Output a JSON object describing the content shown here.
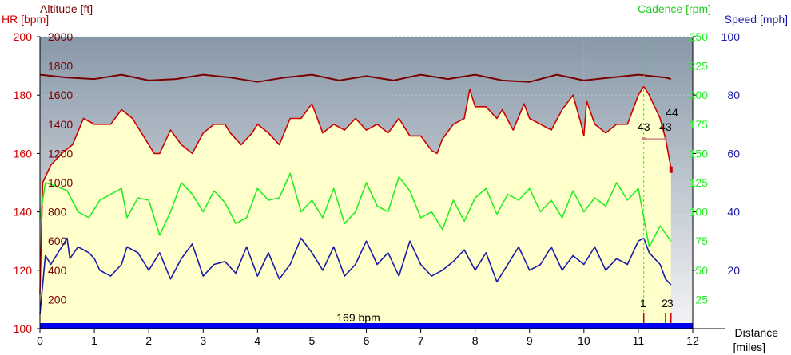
{
  "colors": {
    "hr": "#cc0000",
    "altitude": "#7a0000",
    "cadence": "#22ee22",
    "speed": "#1a1aaa",
    "area": "#ffffcc",
    "bg_top": "#8898a8",
    "bg_bottom": "#f4f4f6",
    "bottom_bar": "#0000ee",
    "axis_text": "#000000",
    "grid": "#b8c0c8"
  },
  "chart_data": {
    "type": "line",
    "titles": {
      "altitude": "Altitude [ft]",
      "hr": "HR [bpm]",
      "cadence": "Cadence [rpm]",
      "speed": "Speed [mph]",
      "distance": "Distance",
      "distance_unit": "[miles]"
    },
    "axes": {
      "x": {
        "range": [
          0,
          12
        ],
        "ticks": [
          "0",
          "1",
          "2",
          "3",
          "4",
          "5",
          "6",
          "7",
          "8",
          "9",
          "10",
          "11",
          "12"
        ]
      },
      "hr": {
        "range": [
          100,
          200
        ],
        "ticks": [
          "100",
          "120",
          "140",
          "160",
          "180",
          "200"
        ]
      },
      "altitude": {
        "range": [
          0,
          2000
        ],
        "ticks": [
          "200",
          "400",
          "600",
          "800",
          "1000",
          "1200",
          "1400",
          "1600",
          "1800",
          "2000"
        ]
      },
      "cadence": {
        "range": [
          0,
          250
        ],
        "ticks": [
          "25",
          "50",
          "75",
          "100",
          "125",
          "150",
          "175",
          "200",
          "225",
          "250"
        ]
      },
      "speed": {
        "range": [
          0,
          100
        ],
        "ticks": [
          "20",
          "40",
          "60",
          "80",
          "100"
        ]
      }
    },
    "marker_x": 11.1,
    "bottom_label": "169 bpm",
    "laps": [
      {
        "label": "1",
        "x": 11.1
      },
      {
        "label": "2",
        "x": 11.5
      },
      {
        "label": "3",
        "x": 11.6
      }
    ],
    "lap_segment": {
      "left_label": "43",
      "right_label": "43",
      "top_label": "44",
      "x_start": 11.1,
      "x_end": 11.5,
      "hr": 165
    },
    "series": [
      {
        "name": "Altitude",
        "axis": "altitude",
        "x": [
          0,
          0.5,
          1,
          1.5,
          2,
          2.5,
          3,
          3.5,
          4,
          4.5,
          5,
          5.5,
          6,
          6.5,
          7,
          7.5,
          8,
          8.5,
          9,
          9.5,
          10,
          10.5,
          11,
          11.5,
          11.6
        ],
        "values": [
          1740,
          1720,
          1710,
          1740,
          1700,
          1710,
          1740,
          1720,
          1690,
          1720,
          1740,
          1700,
          1730,
          1700,
          1740,
          1710,
          1740,
          1700,
          1690,
          1740,
          1700,
          1720,
          1740,
          1720,
          1710
        ]
      },
      {
        "name": "HR",
        "axis": "hr",
        "x": [
          0,
          0.05,
          0.2,
          0.4,
          0.6,
          0.8,
          1.0,
          1.3,
          1.5,
          1.7,
          1.9,
          2.0,
          2.1,
          2.2,
          2.4,
          2.6,
          2.8,
          3.0,
          3.2,
          3.4,
          3.5,
          3.7,
          3.9,
          4.0,
          4.2,
          4.4,
          4.6,
          4.8,
          5.0,
          5.1,
          5.2,
          5.4,
          5.6,
          5.8,
          6.0,
          6.2,
          6.4,
          6.6,
          6.8,
          7.0,
          7.2,
          7.3,
          7.4,
          7.6,
          7.8,
          7.9,
          8.0,
          8.2,
          8.4,
          8.5,
          8.7,
          8.9,
          9.0,
          9.2,
          9.4,
          9.6,
          9.8,
          9.95,
          10.0,
          10.05,
          10.2,
          10.4,
          10.6,
          10.8,
          11.0,
          11.1,
          11.2,
          11.3,
          11.4,
          11.5,
          11.6
        ],
        "values": [
          112,
          150,
          156,
          160,
          163,
          172,
          170,
          170,
          175,
          172,
          166,
          163,
          160,
          160,
          168,
          163,
          160,
          167,
          170,
          170,
          167,
          163,
          167,
          170,
          167,
          163,
          172,
          172,
          177,
          172,
          167,
          170,
          168,
          172,
          168,
          170,
          167,
          172,
          166,
          166,
          161,
          160,
          165,
          170,
          172,
          182,
          176,
          176,
          172,
          175,
          168,
          177,
          172,
          170,
          168,
          175,
          180,
          170,
          166,
          178,
          170,
          167,
          170,
          170,
          180,
          183,
          180,
          176,
          172,
          165,
          155
        ]
      },
      {
        "name": "Cadence",
        "axis": "cadence",
        "x": [
          0,
          0.1,
          0.3,
          0.5,
          0.7,
          0.9,
          1.1,
          1.3,
          1.5,
          1.6,
          1.8,
          2.0,
          2.2,
          2.4,
          2.6,
          2.8,
          3.0,
          3.2,
          3.4,
          3.6,
          3.8,
          4.0,
          4.2,
          4.4,
          4.6,
          4.8,
          5.0,
          5.2,
          5.4,
          5.6,
          5.8,
          6.0,
          6.2,
          6.4,
          6.6,
          6.8,
          7.0,
          7.2,
          7.4,
          7.6,
          7.8,
          8.0,
          8.2,
          8.4,
          8.6,
          8.8,
          9.0,
          9.2,
          9.4,
          9.6,
          9.8,
          10.0,
          10.2,
          10.4,
          10.6,
          10.8,
          11.0,
          11.2,
          11.4,
          11.6
        ],
        "values": [
          95,
          125,
          122,
          118,
          100,
          95,
          110,
          115,
          120,
          95,
          112,
          110,
          80,
          100,
          125,
          115,
          100,
          118,
          108,
          90,
          95,
          120,
          110,
          112,
          133,
          100,
          110,
          95,
          120,
          90,
          100,
          125,
          105,
          100,
          130,
          118,
          95,
          100,
          85,
          110,
          92,
          112,
          120,
          98,
          115,
          110,
          120,
          100,
          110,
          95,
          118,
          100,
          112,
          105,
          125,
          110,
          120,
          70,
          88,
          75
        ]
      },
      {
        "name": "Speed",
        "axis": "speed",
        "x": [
          0,
          0.1,
          0.2,
          0.4,
          0.5,
          0.55,
          0.7,
          0.9,
          1.0,
          1.1,
          1.3,
          1.5,
          1.6,
          1.8,
          2.0,
          2.2,
          2.4,
          2.6,
          2.8,
          3.0,
          3.2,
          3.4,
          3.6,
          3.8,
          4.0,
          4.2,
          4.4,
          4.6,
          4.8,
          5.0,
          5.2,
          5.4,
          5.6,
          5.8,
          6.0,
          6.2,
          6.4,
          6.6,
          6.8,
          7.0,
          7.2,
          7.4,
          7.6,
          7.8,
          8.0,
          8.2,
          8.4,
          8.6,
          8.8,
          9.0,
          9.2,
          9.4,
          9.6,
          9.8,
          10.0,
          10.2,
          10.4,
          10.6,
          10.8,
          11.0,
          11.1,
          11.2,
          11.3,
          11.4,
          11.5,
          11.6
        ],
        "values": [
          5,
          25,
          22,
          28,
          31,
          24,
          28,
          26,
          24,
          20,
          18,
          22,
          28,
          26,
          20,
          26,
          17,
          24,
          29,
          18,
          22,
          23,
          19,
          28,
          18,
          26,
          17,
          22,
          31,
          26,
          20,
          28,
          18,
          22,
          30,
          22,
          26,
          18,
          30,
          22,
          18,
          20,
          23,
          27,
          20,
          26,
          16,
          22,
          28,
          20,
          22,
          28,
          20,
          25,
          22,
          28,
          20,
          24,
          22,
          30,
          31,
          26,
          24,
          22,
          17,
          15
        ]
      }
    ]
  }
}
